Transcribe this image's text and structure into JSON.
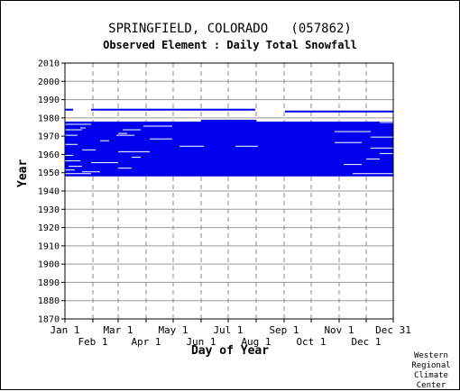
{
  "chart_data": {
    "type": "heatmap",
    "title": "SPRINGFIELD, COLORADO   (057862)",
    "subtitle": "Observed Element : Daily Total Snowfall",
    "xlabel": "Day of Year",
    "ylabel": "Year",
    "ylim": [
      1870,
      2010
    ],
    "xlim": [
      1,
      365
    ],
    "y_ticks": [
      1870,
      1880,
      1890,
      1900,
      1910,
      1920,
      1930,
      1940,
      1950,
      1960,
      1970,
      1980,
      1990,
      2000,
      2010
    ],
    "x_ticks_top": [
      {
        "label": "Jan 1",
        "day": 1
      },
      {
        "label": "Mar 1",
        "day": 60
      },
      {
        "label": "May 1",
        "day": 121
      },
      {
        "label": "Jul 1",
        "day": 182
      },
      {
        "label": "Sep 1",
        "day": 244
      },
      {
        "label": "Nov 1",
        "day": 305
      },
      {
        "label": "Dec 31",
        "day": 365
      }
    ],
    "x_ticks_bottom": [
      {
        "label": "Feb 1",
        "day": 32
      },
      {
        "label": "Apr 1",
        "day": 91
      },
      {
        "label": "Jun 1",
        "day": 152
      },
      {
        "label": "Aug 1",
        "day": 213
      },
      {
        "label": "Oct 1",
        "day": 274
      },
      {
        "label": "Dec 1",
        "day": 335
      }
    ],
    "grid": true,
    "series_color": "#0000ee",
    "observed_segments": [
      {
        "year_start": 1948,
        "year_end": 1978,
        "day_start": 1,
        "day_end": 365
      },
      {
        "year_start": 1978,
        "year_end": 1979,
        "day_start": 152,
        "day_end": 213
      },
      {
        "year_start": 1984,
        "year_end": 1985,
        "day_start": 1,
        "day_end": 10
      },
      {
        "year_start": 1984,
        "year_end": 1985,
        "day_start": 30,
        "day_end": 212
      },
      {
        "year_start": 1983,
        "year_end": 1984,
        "day_start": 245,
        "day_end": 365
      }
    ],
    "missing_segments": [
      {
        "year": 1976,
        "day_start": 1,
        "day_end": 30
      },
      {
        "year": 1975,
        "day_start": 88,
        "day_end": 120
      },
      {
        "year": 1974,
        "day_start": 18,
        "day_end": 24
      },
      {
        "year": 1973,
        "day_start": 1,
        "day_end": 20
      },
      {
        "year": 1973,
        "day_start": 65,
        "day_end": 85
      },
      {
        "year": 1972,
        "day_start": 300,
        "day_end": 340
      },
      {
        "year": 1971,
        "day_start": 60,
        "day_end": 70
      },
      {
        "year": 1970,
        "day_start": 1,
        "day_end": 15
      },
      {
        "year": 1970,
        "day_start": 58,
        "day_end": 78
      },
      {
        "year": 1969,
        "day_start": 340,
        "day_end": 365
      },
      {
        "year": 1968,
        "day_start": 95,
        "day_end": 120
      },
      {
        "year": 1967,
        "day_start": 40,
        "day_end": 50
      },
      {
        "year": 1966,
        "day_start": 300,
        "day_end": 330
      },
      {
        "year": 1965,
        "day_start": 1,
        "day_end": 15
      },
      {
        "year": 1964,
        "day_start": 128,
        "day_end": 155
      },
      {
        "year": 1964,
        "day_start": 190,
        "day_end": 215
      },
      {
        "year": 1963,
        "day_start": 340,
        "day_end": 365
      },
      {
        "year": 1962,
        "day_start": 20,
        "day_end": 35
      },
      {
        "year": 1961,
        "day_start": 60,
        "day_end": 95
      },
      {
        "year": 1960,
        "day_start": 350,
        "day_end": 365
      },
      {
        "year": 1959,
        "day_start": 1,
        "day_end": 10
      },
      {
        "year": 1958,
        "day_start": 75,
        "day_end": 85
      },
      {
        "year": 1957,
        "day_start": 335,
        "day_end": 350
      },
      {
        "year": 1956,
        "day_start": 1,
        "day_end": 18
      },
      {
        "year": 1955,
        "day_start": 30,
        "day_end": 60
      },
      {
        "year": 1954,
        "day_start": 310,
        "day_end": 330
      },
      {
        "year": 1953,
        "day_start": 5,
        "day_end": 20
      },
      {
        "year": 1952,
        "day_start": 60,
        "day_end": 75
      },
      {
        "year": 1951,
        "day_start": 1,
        "day_end": 12
      },
      {
        "year": 1950,
        "day_start": 20,
        "day_end": 40
      },
      {
        "year": 1949,
        "day_start": 1,
        "day_end": 30
      },
      {
        "year": 1949,
        "day_start": 320,
        "day_end": 365
      },
      {
        "year": 1977,
        "day_start": 350,
        "day_end": 365
      }
    ]
  },
  "credit_lines": [
    "Western",
    "Regional",
    "Climate",
    "Center"
  ]
}
